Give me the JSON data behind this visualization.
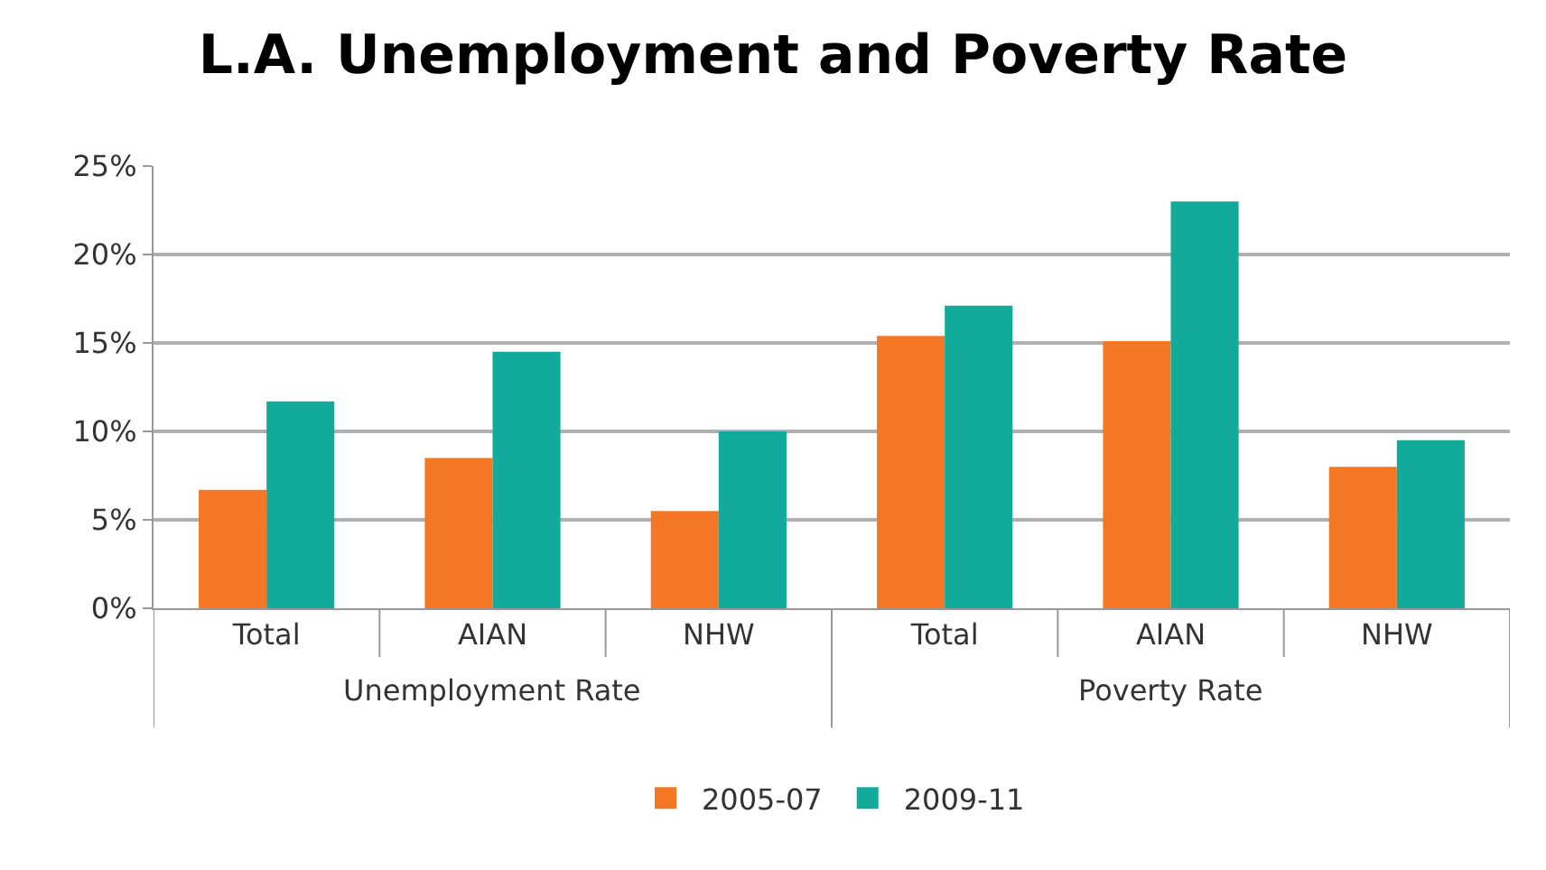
{
  "chart_data": {
    "type": "bar",
    "title": "L.A. Unemployment and Poverty Rate",
    "categories": [
      "Total",
      "AIAN",
      "NHW",
      "Total",
      "AIAN",
      "NHW"
    ],
    "annotations": [
      "Unemployment Rate",
      "Poverty Rate"
    ],
    "series": [
      {
        "name": "2005-07",
        "color": "#f47726",
        "values": [
          6.7,
          8.5,
          5.5,
          15.4,
          15.1,
          8.0
        ]
      },
      {
        "name": "2009-11",
        "color": "#12ab9b",
        "values": [
          11.7,
          14.5,
          10.0,
          17.1,
          23.0,
          9.5
        ]
      }
    ],
    "ylim": [
      0,
      25
    ],
    "yticks": [
      {
        "value": 0,
        "label": "0%"
      },
      {
        "value": 5,
        "label": "5%"
      },
      {
        "value": 10,
        "label": "10%"
      },
      {
        "value": 15,
        "label": "15%"
      },
      {
        "value": 20,
        "label": "20%"
      },
      {
        "value": 25,
        "label": "25%"
      }
    ],
    "grid": "y",
    "legend": "bottom"
  }
}
